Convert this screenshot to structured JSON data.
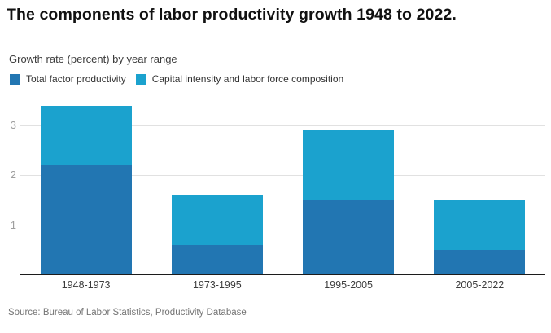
{
  "header": {
    "title": "The components of labor productivity growth 1948 to 2022.",
    "subtitle": "Growth rate (percent) by year range"
  },
  "chart_data": {
    "type": "bar",
    "stacked": true,
    "title": "The components of labor productivity growth 1948 to 2022.",
    "ylabel": "Growth rate (percent)",
    "xlabel": "Year range",
    "categories": [
      "1948-1973",
      "1973-1995",
      "1995-2005",
      "2005-2022"
    ],
    "series": [
      {
        "name": "Total factor productivity",
        "color": "#2276b2",
        "values": [
          2.2,
          0.6,
          1.5,
          0.5
        ]
      },
      {
        "name": "Capital intensity and labor force composition",
        "color": "#1ba2ce",
        "values": [
          1.2,
          1.0,
          1.4,
          1.0
        ]
      }
    ],
    "stack_totals": [
      3.4,
      1.6,
      2.9,
      1.5
    ],
    "yticks": [
      1,
      2,
      3
    ],
    "ylim": [
      0,
      3.59
    ],
    "grid": true,
    "legend_position": "top",
    "colors": {
      "dark_blue": "#2276b2",
      "light_blue": "#1ba2ce",
      "gridline": "#e1e1e1",
      "axis": "#1c1c1c"
    }
  },
  "footer": {
    "source": "Source: Bureau of Labor Statistics, Productivity Database"
  }
}
